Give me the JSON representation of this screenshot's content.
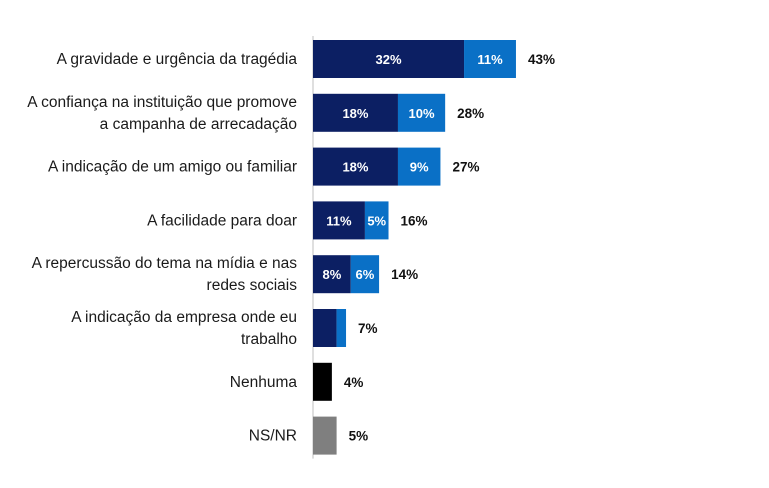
{
  "chart_data": {
    "type": "bar",
    "orientation": "horizontal",
    "stacked": true,
    "categories": [
      [
        "A gravidade e urgência da tragédia"
      ],
      [
        "A confiança na instituição que promove",
        "a campanha de arrecadação"
      ],
      [
        "A indicação de um amigo ou familiar"
      ],
      [
        "A facilidade para doar"
      ],
      [
        "A repercussão do tema na mídia e nas",
        "redes sociais"
      ],
      [
        "A indicação da empresa onde eu",
        "trabalho"
      ],
      [
        "Nenhuma"
      ],
      [
        "NS/NR"
      ]
    ],
    "series": [
      {
        "color": "#0c1f63",
        "values": [
          32,
          18,
          18,
          11,
          8,
          5,
          4,
          5
        ],
        "labels": [
          "32%",
          "18%",
          "18%",
          "11%",
          "8%",
          "",
          "",
          ""
        ],
        "point_colors": [
          null,
          null,
          null,
          null,
          null,
          null,
          "#000000",
          "#7f7f7f"
        ]
      },
      {
        "color": "#0a70c6",
        "values": [
          11,
          10,
          9,
          5,
          6,
          2,
          0,
          0
        ],
        "labels": [
          "11%",
          "10%",
          "9%",
          "5%",
          "6%",
          "",
          "",
          ""
        ]
      }
    ],
    "totals": [
      "43%",
      "28%",
      "27%",
      "16%",
      "14%",
      "7%",
      "4%",
      "5%"
    ],
    "legend": "none",
    "grid": false,
    "axis_line": "left"
  }
}
